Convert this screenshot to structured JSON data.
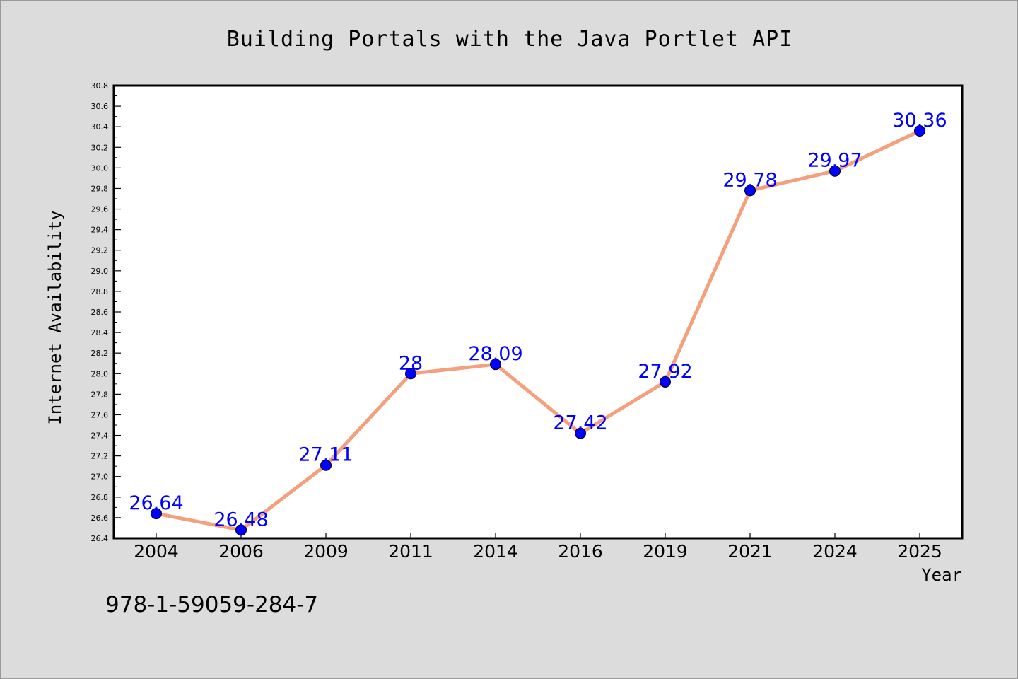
{
  "chart_data": {
    "type": "line",
    "title": "Building Portals with the Java Portlet API",
    "xlabel": "Year",
    "ylabel": "Internet Availability",
    "categories": [
      "2004",
      "2006",
      "2009",
      "2011",
      "2014",
      "2016",
      "2019",
      "2021",
      "2024",
      "2025"
    ],
    "series": [
      {
        "values": [
          26.64,
          26.48,
          27.11,
          28.0,
          28.09,
          27.42,
          27.92,
          29.78,
          29.97,
          30.36
        ],
        "labels": [
          "26.64",
          "26.48",
          "27.11",
          "28",
          "28.09",
          "27.42",
          "27.92",
          "29.78",
          "29.97",
          "30.36"
        ]
      }
    ],
    "ylim": [
      26.4,
      30.8
    ],
    "ytick_step": 0.2,
    "grid": false,
    "legend": "none",
    "colors": {
      "line": "#f4a07c",
      "marker": "#0000ff",
      "data_label": "#0000ff",
      "plot_background": "#ffffff",
      "figure_background": "#dcdcdc"
    }
  },
  "footnote": "978-1-59059-284-7"
}
